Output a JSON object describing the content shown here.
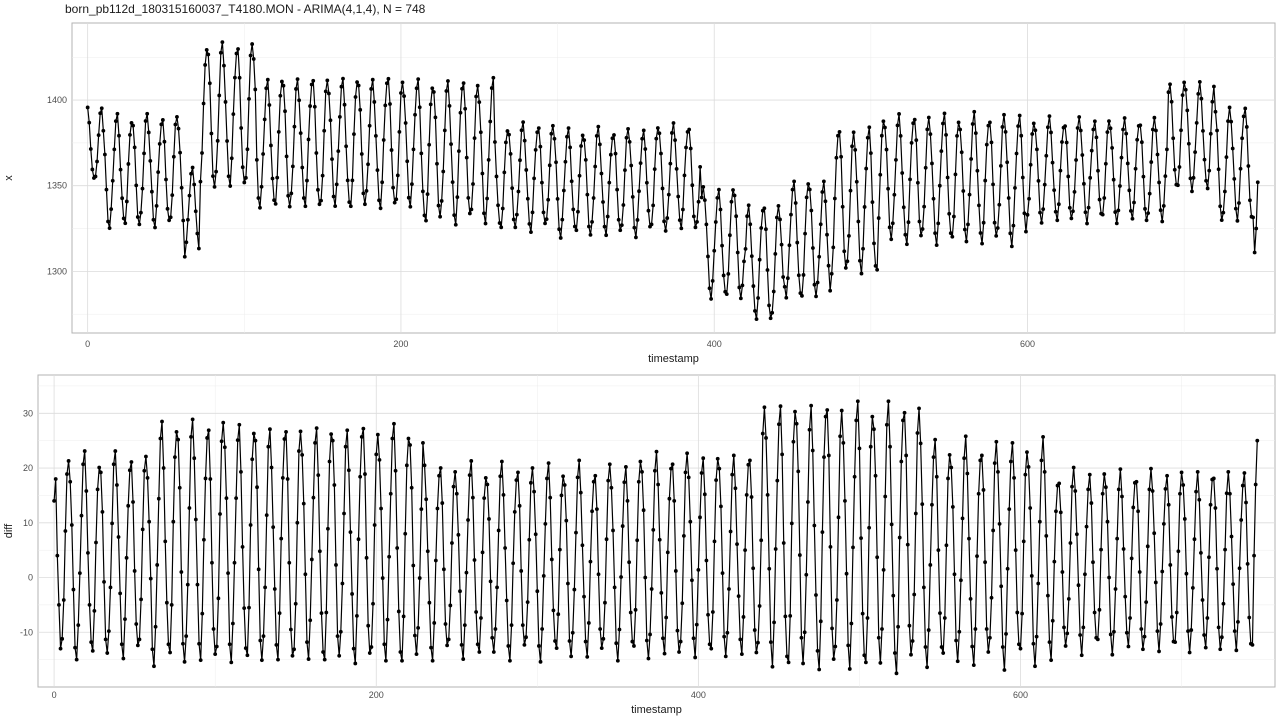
{
  "title": "born_pb112d_180315160037_T4180.MON - ARIMA(4,1,4), N = 748",
  "chart_data": [
    {
      "type": "line",
      "n": 748,
      "xlabel": "timestamp",
      "ylabel": "x",
      "xlim": [
        -10,
        758
      ],
      "ylim": [
        1264,
        1445
      ],
      "xticks": [
        0,
        200,
        400,
        600
      ],
      "yticks": [
        1300,
        1350,
        1400
      ],
      "grid": true,
      "series": [
        {
          "segments": [
            {
              "x0": 0,
              "x1": 10,
              "a": 1396,
              "b": 1352
            },
            {
              "x0": 10,
              "x1": 62,
              "a": 1390,
              "b": 1327
            },
            {
              "x0": 62,
              "x1": 72,
              "a": 1360,
              "b": 1310
            },
            {
              "x0": 72,
              "x1": 108,
              "a": 1432,
              "b": 1350
            },
            {
              "x0": 108,
              "x1": 210,
              "a": 1412,
              "b": 1338
            },
            {
              "x0": 210,
              "x1": 260,
              "a": 1410,
              "b": 1330
            },
            {
              "x0": 260,
              "x1": 300,
              "a": 1385,
              "b": 1325
            },
            {
              "x0": 300,
              "x1": 360,
              "a": 1382,
              "b": 1322
            },
            {
              "x0": 360,
              "x1": 392,
              "a": 1385,
              "b": 1325
            },
            {
              "x0": 392,
              "x1": 420,
              "a": 1348,
              "b": 1285
            },
            {
              "x0": 420,
              "x1": 445,
              "a": 1338,
              "b": 1272
            },
            {
              "x0": 445,
              "x1": 475,
              "a": 1352,
              "b": 1285
            },
            {
              "x0": 475,
              "x1": 505,
              "a": 1382,
              "b": 1300
            },
            {
              "x0": 505,
              "x1": 600,
              "a": 1390,
              "b": 1318
            },
            {
              "x0": 600,
              "x1": 690,
              "a": 1388,
              "b": 1330
            },
            {
              "x0": 690,
              "x1": 720,
              "a": 1410,
              "b": 1348
            },
            {
              "x0": 720,
              "x1": 748,
              "a": 1395,
              "b": 1330
            }
          ],
          "end_values": [
            1311,
            1325,
            1352
          ],
          "period": 9.6
        }
      ]
    },
    {
      "type": "line",
      "n": 748,
      "xlabel": "timestamp",
      "ylabel": "diff",
      "xlim": [
        -10,
        758
      ],
      "ylim": [
        -20,
        37
      ],
      "xticks": [
        0,
        200,
        400,
        600
      ],
      "yticks": [
        -10,
        0,
        10,
        20,
        30
      ],
      "grid": true,
      "series": [
        {
          "segments": [
            {
              "x0": 0,
              "x1": 60,
              "a": 22,
              "b": -14
            },
            {
              "x0": 60,
              "x1": 120,
              "a": 28,
              "b": -15
            },
            {
              "x0": 120,
              "x1": 230,
              "a": 27,
              "b": -15
            },
            {
              "x0": 230,
              "x1": 360,
              "a": 20,
              "b": -14
            },
            {
              "x0": 360,
              "x1": 440,
              "a": 22,
              "b": -14
            },
            {
              "x0": 440,
              "x1": 540,
              "a": 31,
              "b": -16
            },
            {
              "x0": 540,
              "x1": 620,
              "a": 24,
              "b": -15
            },
            {
              "x0": 620,
              "x1": 748,
              "a": 19,
              "b": -13
            }
          ],
          "start_values": [
            14,
            18,
            4,
            -5,
            -13
          ],
          "end_values": [
            4,
            17,
            25
          ],
          "period": 9.6
        }
      ]
    }
  ]
}
